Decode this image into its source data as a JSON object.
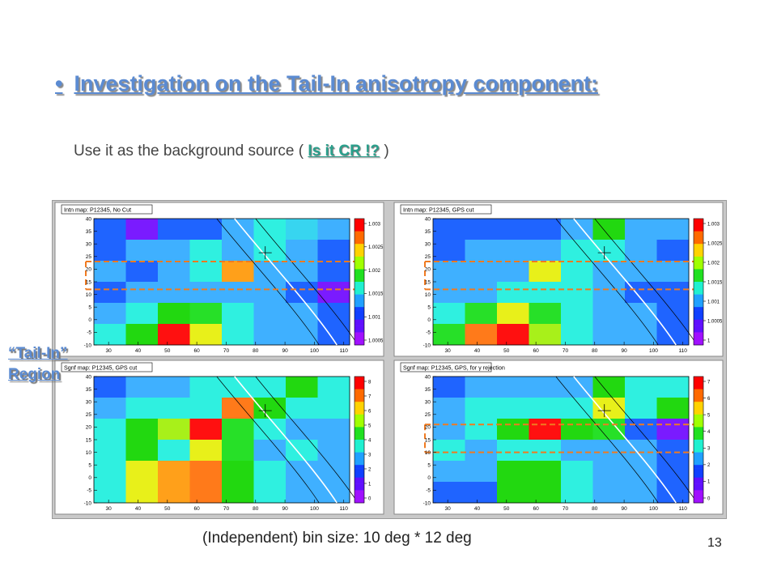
{
  "slide": {
    "bullet": "•",
    "title": "Investigation on the Tail-In anisotropy component:",
    "subtitle_pre": "Use it as the background source ( ",
    "subtitle_link": "Is it CR !?",
    "subtitle_post": " )",
    "tailin_line1": "“Tail-In”",
    "tailin_line2": " Region",
    "footer": "(Independent) bin size:  10 deg * 12 deg",
    "page_number": "13"
  },
  "chart_data": [
    {
      "type": "heatmap",
      "title": "Intn map: P12345,  No Cut",
      "x_ticks": [
        30,
        40,
        50,
        60,
        70,
        80,
        90,
        100,
        110
      ],
      "y_ticks": [
        -10,
        -5,
        0,
        5,
        10,
        15,
        20,
        25,
        30,
        35,
        40
      ],
      "xlim": [
        25,
        112
      ],
      "ylim": [
        -10,
        40
      ],
      "colorbar_ticks": [
        "1.003",
        "1.0025",
        "1.002",
        "1.0015",
        "1.001",
        "1.0005"
      ],
      "cells": [
        [
          "#1f64ff",
          "#7a1bff",
          "#1f64ff",
          "#1f64ff",
          "#3fb0ff",
          "#2ff0e0",
          "#37d5f0",
          "#3fb0ff"
        ],
        [
          "#1f64ff",
          "#3fb0ff",
          "#3fb0ff",
          "#2ff0e0",
          "#3fb0ff",
          "#2ff0e0",
          "#3fb0ff",
          "#1f64ff"
        ],
        [
          "#3fb0ff",
          "#1f64ff",
          "#3fb0ff",
          "#2ff0e0",
          "#ffa01a",
          "#3fb0ff",
          "#3fb0ff",
          "#1f64ff"
        ],
        [
          "#1f64ff",
          "#3fb0ff",
          "#3fb0ff",
          "#3fb0ff",
          "#3fb0ff",
          "#3fb0ff",
          "#1f64ff",
          "#7a1bff"
        ],
        [
          "#3fb0ff",
          "#2ff0e0",
          "#22d810",
          "#27e028",
          "#2ff0e0",
          "#3fb0ff",
          "#3fb0ff",
          "#1f64ff"
        ],
        [
          "#2ff0e0",
          "#22d810",
          "#ff1010",
          "#e8f01a",
          "#2ff0e0",
          "#3fb0ff",
          "#3fb0ff",
          "#1f64ff"
        ]
      ]
    },
    {
      "type": "heatmap",
      "title": "Intn map: P12345,  GPS cut",
      "x_ticks": [
        30,
        40,
        50,
        60,
        70,
        80,
        90,
        100,
        110
      ],
      "y_ticks": [
        -10,
        -5,
        0,
        5,
        10,
        15,
        20,
        25,
        30,
        35,
        40
      ],
      "xlim": [
        25,
        112
      ],
      "ylim": [
        -10,
        40
      ],
      "colorbar_ticks": [
        "1.003",
        "1.0025",
        "1.002",
        "1.0015",
        "1.001",
        "1.0005",
        "1"
      ],
      "cells": [
        [
          "#1f64ff",
          "#1f64ff",
          "#1f64ff",
          "#1f64ff",
          "#3fb0ff",
          "#22d810",
          "#3fb0ff",
          "#3fb0ff"
        ],
        [
          "#1f64ff",
          "#3fb0ff",
          "#3fb0ff",
          "#3fb0ff",
          "#2ff0e0",
          "#2ff0e0",
          "#3fb0ff",
          "#1f64ff"
        ],
        [
          "#3fb0ff",
          "#3fb0ff",
          "#3fb0ff",
          "#e8f01a",
          "#2ff0e0",
          "#3fb0ff",
          "#3fb0ff",
          "#3fb0ff"
        ],
        [
          "#3fb0ff",
          "#3fb0ff",
          "#2ff0e0",
          "#2ff0e0",
          "#2ff0e0",
          "#3fb0ff",
          "#1f64ff",
          "#1f64ff"
        ],
        [
          "#2ff0e0",
          "#27e028",
          "#e8f01a",
          "#27e028",
          "#2ff0e0",
          "#3fb0ff",
          "#3fb0ff",
          "#1f64ff"
        ],
        [
          "#27e028",
          "#ff7a1a",
          "#ff1010",
          "#a8f01a",
          "#2ff0e0",
          "#3fb0ff",
          "#3fb0ff",
          "#1f64ff"
        ]
      ]
    },
    {
      "type": "heatmap",
      "title": "Sgnf map: P12345, GPS cut",
      "x_ticks": [
        30,
        40,
        50,
        60,
        70,
        80,
        90,
        100,
        110
      ],
      "y_ticks": [
        -10,
        -5,
        0,
        5,
        10,
        15,
        20,
        25,
        30,
        35,
        40
      ],
      "xlim": [
        25,
        112
      ],
      "ylim": [
        -10,
        40
      ],
      "colorbar_ticks": [
        "8",
        "7",
        "6",
        "5",
        "4",
        "3",
        "2",
        "1",
        "0"
      ],
      "cells": [
        [
          "#1f64ff",
          "#3fb0ff",
          "#3fb0ff",
          "#2ff0e0",
          "#2ff0e0",
          "#2ff0e0",
          "#22d810",
          "#2ff0e0"
        ],
        [
          "#3fb0ff",
          "#2ff0e0",
          "#2ff0e0",
          "#2ff0e0",
          "#ff7a1a",
          "#22d810",
          "#2ff0e0",
          "#2ff0e0"
        ],
        [
          "#2ff0e0",
          "#22d810",
          "#a8f01a",
          "#ff1010",
          "#27e028",
          "#2ff0e0",
          "#3fb0ff",
          "#3fb0ff"
        ],
        [
          "#2ff0e0",
          "#22d810",
          "#2ff0e0",
          "#e8f01a",
          "#27e028",
          "#3fb0ff",
          "#2ff0e0",
          "#3fb0ff"
        ],
        [
          "#2ff0e0",
          "#e8f01a",
          "#ffa01a",
          "#ff7a1a",
          "#22d810",
          "#2ff0e0",
          "#3fb0ff",
          "#3fb0ff"
        ],
        [
          "#2ff0e0",
          "#e8f01a",
          "#ffa01a",
          "#ff7a1a",
          "#22d810",
          "#2ff0e0",
          "#3fb0ff",
          "#3fb0ff"
        ]
      ]
    },
    {
      "type": "heatmap",
      "title": "Sgnf map: P12345, GPS, for γ rejection",
      "x_ticks": [
        30,
        40,
        50,
        60,
        70,
        80,
        90,
        100,
        110
      ],
      "y_ticks": [
        -10,
        -5,
        0,
        5,
        10,
        15,
        20,
        25,
        30,
        35,
        40
      ],
      "xlim": [
        25,
        112
      ],
      "ylim": [
        -10,
        40
      ],
      "colorbar_ticks": [
        "7",
        "6",
        "5",
        "4",
        "3",
        "2",
        "1",
        "0"
      ],
      "cells": [
        [
          "#1f64ff",
          "#3fb0ff",
          "#3fb0ff",
          "#3fb0ff",
          "#3fb0ff",
          "#22d810",
          "#2ff0e0",
          "#2ff0e0"
        ],
        [
          "#3fb0ff",
          "#2ff0e0",
          "#2ff0e0",
          "#2ff0e0",
          "#2ff0e0",
          "#e8f01a",
          "#2ff0e0",
          "#22d810"
        ],
        [
          "#3fb0ff",
          "#2ff0e0",
          "#22d810",
          "#ff1010",
          "#22d810",
          "#27e028",
          "#1f64ff",
          "#7a1bff"
        ],
        [
          "#2ff0e0",
          "#3fb0ff",
          "#2ff0e0",
          "#2ff0e0",
          "#3fb0ff",
          "#3fb0ff",
          "#3fb0ff",
          "#1f64ff"
        ],
        [
          "#3fb0ff",
          "#3fb0ff",
          "#22d810",
          "#22d810",
          "#2ff0e0",
          "#3fb0ff",
          "#3fb0ff",
          "#1f64ff"
        ],
        [
          "#1f64ff",
          "#1f64ff",
          "#22d810",
          "#22d810",
          "#2ff0e0",
          "#3fb0ff",
          "#3fb0ff",
          "#1f64ff"
        ]
      ]
    }
  ]
}
